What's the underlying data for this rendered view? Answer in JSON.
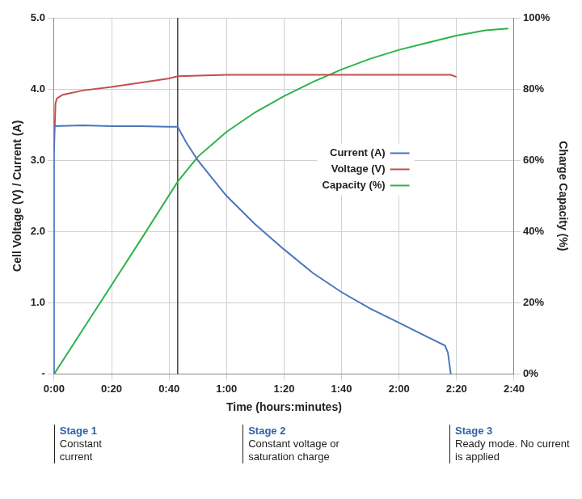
{
  "chart_data": {
    "type": "line",
    "x_label": "Time (hours:minutes)",
    "y_label": "Cell Voltage (V) / Current (A)",
    "y2_label": "Charge Capacity (%)",
    "xlim": [
      0,
      160
    ],
    "xticks": [
      {
        "value": 0,
        "label": "0:00"
      },
      {
        "value": 20,
        "label": "0:20"
      },
      {
        "value": 40,
        "label": "0:40"
      },
      {
        "value": 60,
        "label": "1:00"
      },
      {
        "value": 80,
        "label": "1:20"
      },
      {
        "value": 100,
        "label": "1:40"
      },
      {
        "value": 120,
        "label": "2:00"
      },
      {
        "value": 140,
        "label": "2:20"
      },
      {
        "value": 160,
        "label": "2:40"
      }
    ],
    "ylim": [
      0,
      5
    ],
    "yticks": [
      {
        "value": 0,
        "label": "-"
      },
      {
        "value": 1,
        "label": "1.0"
      },
      {
        "value": 2,
        "label": "2.0"
      },
      {
        "value": 3,
        "label": "3.0"
      },
      {
        "value": 4,
        "label": "4.0"
      },
      {
        "value": 5,
        "label": "5.0"
      }
    ],
    "y2lim": [
      0,
      100
    ],
    "y2ticks": [
      {
        "value": 0,
        "label": "0%"
      },
      {
        "value": 20,
        "label": "20%"
      },
      {
        "value": 40,
        "label": "40%"
      },
      {
        "value": 60,
        "label": "60%"
      },
      {
        "value": 80,
        "label": "80%"
      },
      {
        "value": 100,
        "label": "100%"
      }
    ],
    "grid": true,
    "legend": "right",
    "series": [
      {
        "name": "Current (A)",
        "color": "#4a76bd",
        "x": [
          0,
          0,
          10,
          20,
          30,
          40,
          43,
          46,
          50,
          55,
          60,
          70,
          80,
          90,
          100,
          110,
          120,
          130,
          136,
          137,
          138
        ],
        "values": [
          0,
          3.48,
          3.49,
          3.48,
          3.48,
          3.47,
          3.47,
          3.25,
          3.0,
          2.75,
          2.5,
          2.1,
          1.75,
          1.42,
          1.15,
          0.92,
          0.72,
          0.52,
          0.4,
          0.3,
          0
        ]
      },
      {
        "name": "Voltage (V)",
        "color": "#c0504d",
        "x": [
          0,
          0.5,
          1,
          3,
          10,
          20,
          30,
          40,
          43,
          60,
          80,
          100,
          120,
          138,
          140
        ],
        "values": [
          3.15,
          3.8,
          3.87,
          3.92,
          3.98,
          4.03,
          4.09,
          4.15,
          4.18,
          4.2,
          4.2,
          4.2,
          4.2,
          4.2,
          4.17
        ]
      },
      {
        "name": "Capacity (%)",
        "color": "#2db34a",
        "axis": "y2",
        "x": [
          0,
          10,
          20,
          30,
          43,
          50,
          60,
          70,
          80,
          90,
          100,
          110,
          120,
          130,
          140,
          150,
          158
        ],
        "values": [
          0,
          12.5,
          25,
          37.5,
          54,
          61,
          68,
          73.5,
          78,
          82,
          85.5,
          88.5,
          91,
          93,
          95,
          96.5,
          97
        ]
      }
    ],
    "vlines": [
      43
    ],
    "annotations": [
      {
        "title": "Stage 1",
        "text": "Constant current"
      },
      {
        "title": "Stage 2",
        "text": "Constant voltage or saturation charge"
      },
      {
        "title": "Stage 3",
        "text": "Ready mode. No current is applied"
      }
    ]
  }
}
